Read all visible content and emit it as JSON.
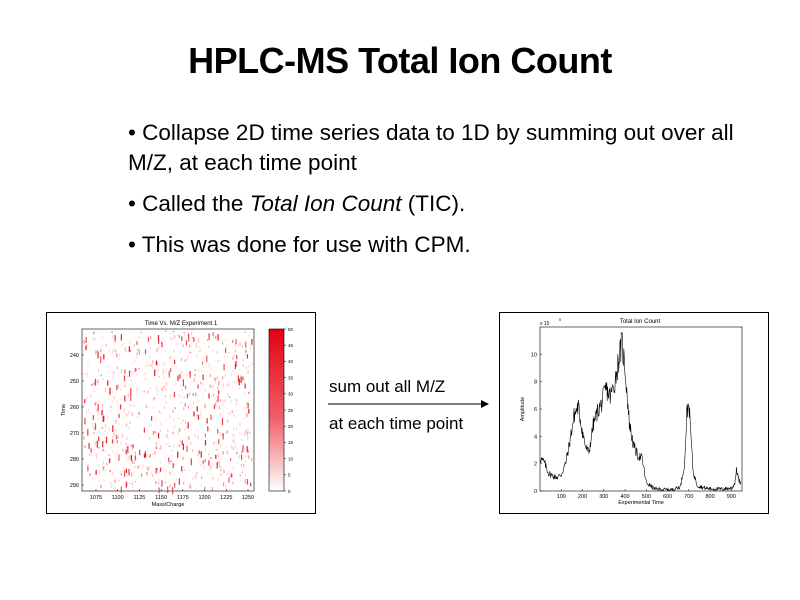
{
  "slide": {
    "title": "HPLC-MS  Total Ion Count",
    "bullets": [
      {
        "pre": "• Collapse 2D time series data to 1D by summing out over all M/Z, at each time point"
      },
      {
        "pre": "• Called the ",
        "em": "Total Ion Count",
        "post": " (TIC)."
      },
      {
        "pre": "• This was done for use with CPM."
      }
    ]
  },
  "arrow": {
    "top_label": "sum out all M/Z",
    "bottom_label": "at each time point"
  },
  "colors": {
    "heat": "#e8101a",
    "line": "#000000"
  },
  "chart_data": [
    {
      "type": "heatmap",
      "title": "Time Vs. M/Z Experiment 1",
      "xlabel": "Mass/Charge",
      "ylabel": "Time",
      "x_ticks": [
        "1075",
        "1100",
        "1125",
        "1150",
        "1175",
        "1200",
        "1225",
        "1250"
      ],
      "y_ticks": [
        "240",
        "250",
        "260",
        "270",
        "280",
        "290"
      ],
      "colorbar_ticks": [
        "50",
        "45",
        "40",
        "35",
        "30",
        "25",
        "20",
        "15",
        "10",
        "5",
        "0"
      ],
      "colorbar_range": [
        0,
        50
      ]
    },
    {
      "type": "line",
      "title": "Total Ion Count",
      "xlabel": "Experimental Time",
      "ylabel": "Amplitude",
      "y_scale_note": "x 10",
      "y_scale_exp": "5",
      "x_ticks": [
        "100",
        "200",
        "300",
        "400",
        "500",
        "600",
        "700",
        "800",
        "900"
      ],
      "y_ticks": [
        "0",
        "2",
        "4",
        "6",
        "8",
        "10"
      ],
      "xlim": [
        0,
        950
      ],
      "ylim": [
        0,
        12
      ],
      "series": [
        {
          "x": [
            0,
            20,
            40,
            60,
            80,
            100,
            120,
            140,
            160,
            180,
            200,
            215,
            230,
            250,
            270,
            290,
            310,
            330,
            350,
            370,
            385,
            400,
            420,
            440,
            460,
            480,
            500,
            540,
            580,
            620,
            660,
            680,
            690,
            700,
            710,
            720,
            740,
            780,
            820,
            860,
            900,
            915,
            925,
            935,
            945
          ],
          "y": [
            2.4,
            2.1,
            1.3,
            1.1,
            1.0,
            1.2,
            2.0,
            3.6,
            5.5,
            6.2,
            4.3,
            3.2,
            2.8,
            4.8,
            5.8,
            6.4,
            7.5,
            6.9,
            7.8,
            9.6,
            10.8,
            9.0,
            5.0,
            3.3,
            2.6,
            2.4,
            0.6,
            0.15,
            0.1,
            0.1,
            0.3,
            2.0,
            5.6,
            6.5,
            4.0,
            1.4,
            0.4,
            0.2,
            0.15,
            0.15,
            0.2,
            0.5,
            1.6,
            0.8,
            0.5
          ]
        }
      ]
    }
  ]
}
